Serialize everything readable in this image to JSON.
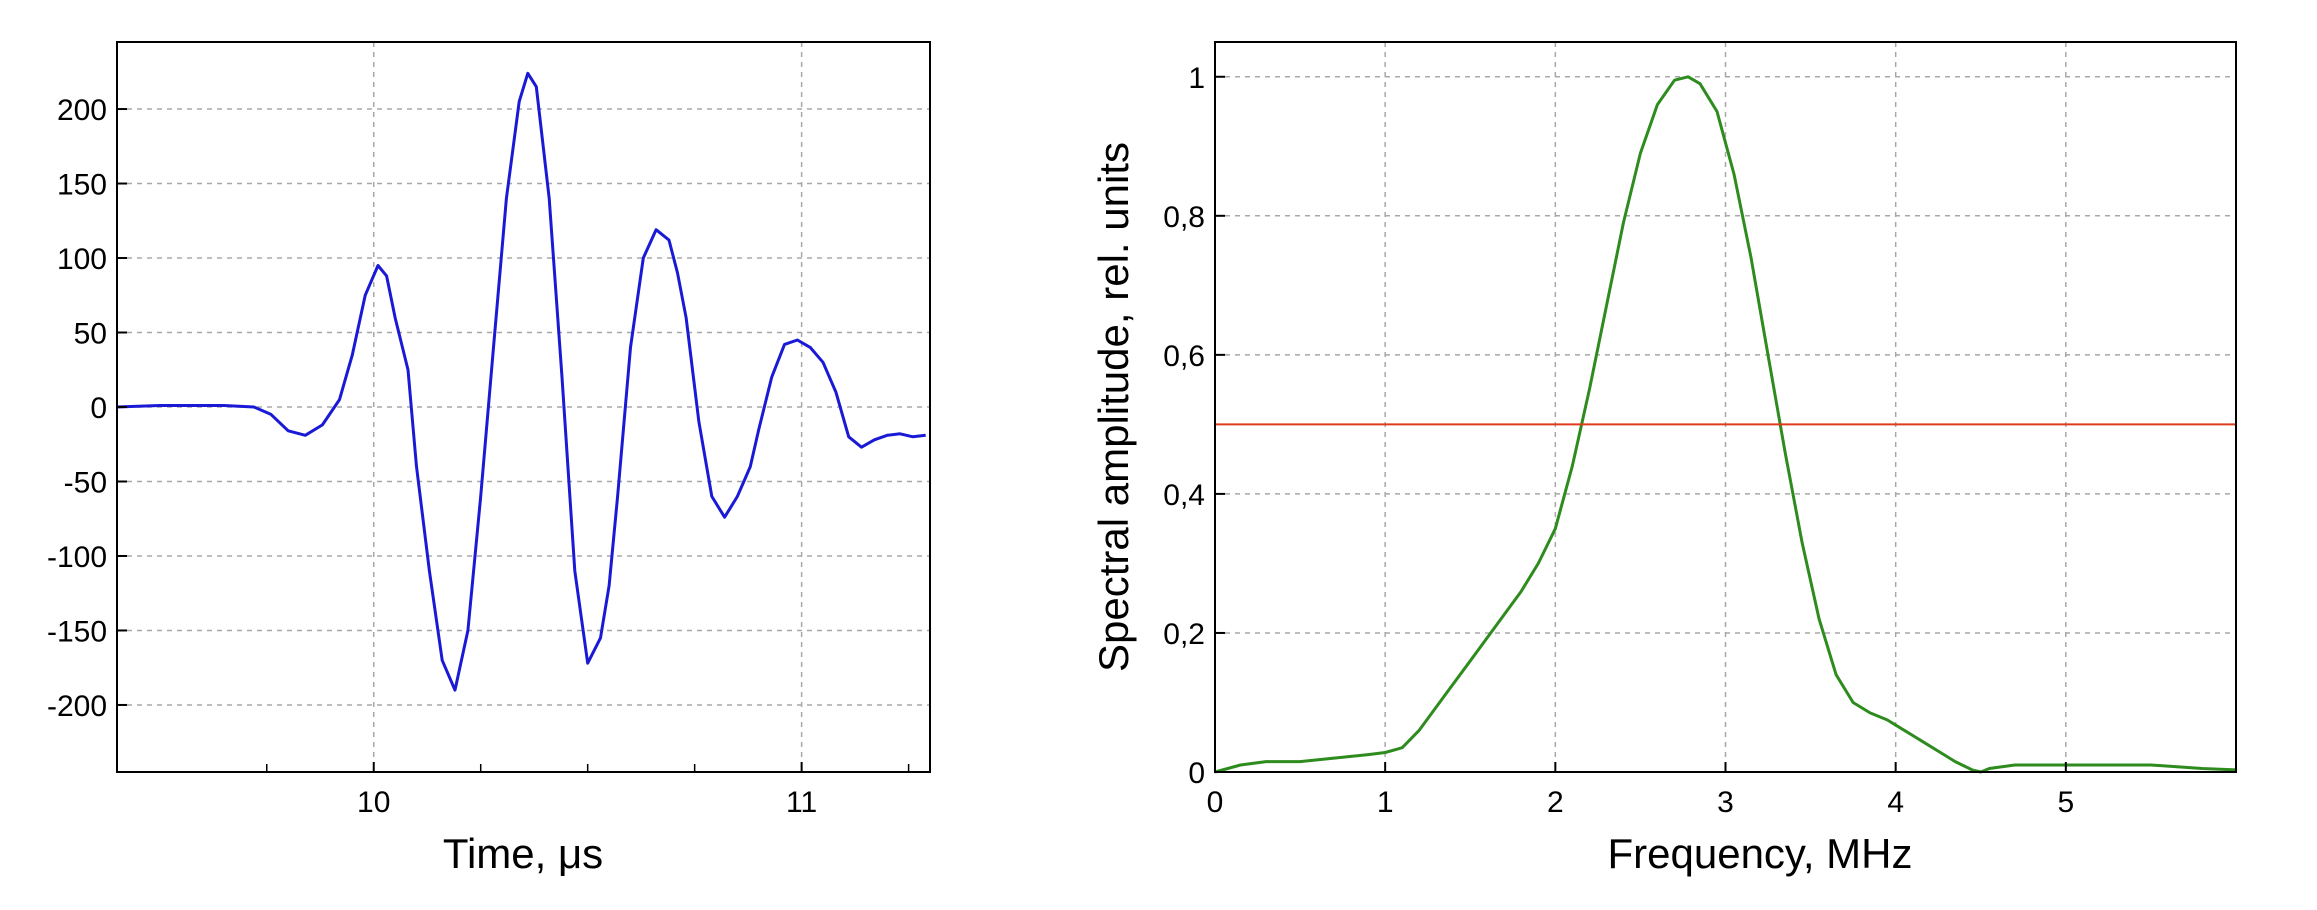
{
  "chart_data": [
    {
      "type": "line",
      "xlabel": "Time, μs",
      "ylabel": "",
      "xlim": [
        9.4,
        11.3
      ],
      "ylim": [
        -245,
        245
      ],
      "x_ticks": [
        10,
        11
      ],
      "y_ticks": [
        -200,
        -150,
        -100,
        -50,
        0,
        50,
        100,
        150,
        200
      ],
      "x_tick_labels": [
        "10",
        "11"
      ],
      "y_tick_labels": [
        "-200",
        "-150",
        "-100",
        "-50",
        "0",
        "50",
        "100",
        "150",
        "200"
      ],
      "grid": true,
      "series": [
        {
          "color": "#1a1ad6",
          "x": [
            9.4,
            9.5,
            9.6,
            9.65,
            9.72,
            9.76,
            9.8,
            9.84,
            9.88,
            9.92,
            9.95,
            9.98,
            10.01,
            10.03,
            10.05,
            10.08,
            10.1,
            10.13,
            10.16,
            10.19,
            10.22,
            10.25,
            10.28,
            10.31,
            10.34,
            10.36,
            10.38,
            10.41,
            10.44,
            10.47,
            10.5,
            10.53,
            10.55,
            10.57,
            10.6,
            10.63,
            10.66,
            10.69,
            10.71,
            10.73,
            10.76,
            10.79,
            10.82,
            10.85,
            10.88,
            10.9,
            10.93,
            10.96,
            10.99,
            11.02,
            11.05,
            11.08,
            11.11,
            11.14,
            11.17,
            11.2,
            11.23,
            11.26,
            11.29
          ],
          "y": [
            0,
            1,
            1,
            1,
            0,
            -5,
            -16,
            -19,
            -12,
            5,
            35,
            75,
            95,
            88,
            60,
            25,
            -40,
            -110,
            -170,
            -190,
            -150,
            -60,
            40,
            140,
            205,
            224,
            215,
            140,
            20,
            -110,
            -172,
            -155,
            -120,
            -60,
            40,
            100,
            119,
            112,
            90,
            60,
            -10,
            -60,
            -74,
            -60,
            -40,
            -15,
            20,
            42,
            45,
            40,
            30,
            10,
            -20,
            -27,
            -22,
            -19,
            -18,
            -20,
            -19
          ]
        }
      ]
    },
    {
      "type": "line",
      "xlabel": "Frequency, MHz",
      "ylabel": "Spectral amplitude, rel. units",
      "xlim": [
        0,
        6
      ],
      "ylim": [
        0,
        1.05
      ],
      "x_ticks": [
        0,
        1,
        2,
        3,
        4,
        5
      ],
      "y_ticks": [
        0,
        0.2,
        0.4,
        0.6,
        0.8,
        1
      ],
      "x_tick_labels": [
        "0",
        "1",
        "2",
        "3",
        "4",
        "5"
      ],
      "y_tick_labels": [
        "0",
        "0,2",
        "0,4",
        "0,6",
        "0,8",
        "1"
      ],
      "grid": true,
      "series": [
        {
          "color": "#2e8b1e",
          "x": [
            0,
            0.15,
            0.3,
            0.5,
            0.7,
            0.9,
            1.0,
            1.1,
            1.2,
            1.35,
            1.5,
            1.65,
            1.8,
            1.9,
            2.0,
            2.1,
            2.2,
            2.3,
            2.4,
            2.5,
            2.6,
            2.7,
            2.78,
            2.85,
            2.95,
            3.05,
            3.15,
            3.25,
            3.35,
            3.45,
            3.55,
            3.65,
            3.75,
            3.85,
            3.95,
            4.05,
            4.15,
            4.25,
            4.35,
            4.45,
            4.5,
            4.55,
            4.7,
            4.9,
            5.2,
            5.5,
            5.8,
            6.0
          ],
          "y": [
            0,
            0.01,
            0.015,
            0.015,
            0.02,
            0.025,
            0.028,
            0.035,
            0.06,
            0.11,
            0.16,
            0.21,
            0.26,
            0.3,
            0.35,
            0.44,
            0.55,
            0.67,
            0.79,
            0.89,
            0.96,
            0.995,
            1.0,
            0.99,
            0.95,
            0.86,
            0.74,
            0.6,
            0.46,
            0.33,
            0.22,
            0.14,
            0.1,
            0.085,
            0.075,
            0.06,
            0.045,
            0.03,
            0.015,
            0.003,
            0.0,
            0.005,
            0.01,
            0.01,
            0.01,
            0.01,
            0.005,
            0.003
          ]
        },
        {
          "color": "#e03a1e",
          "x": [
            0,
            6
          ],
          "y": [
            0.5,
            0.5
          ]
        }
      ]
    }
  ]
}
